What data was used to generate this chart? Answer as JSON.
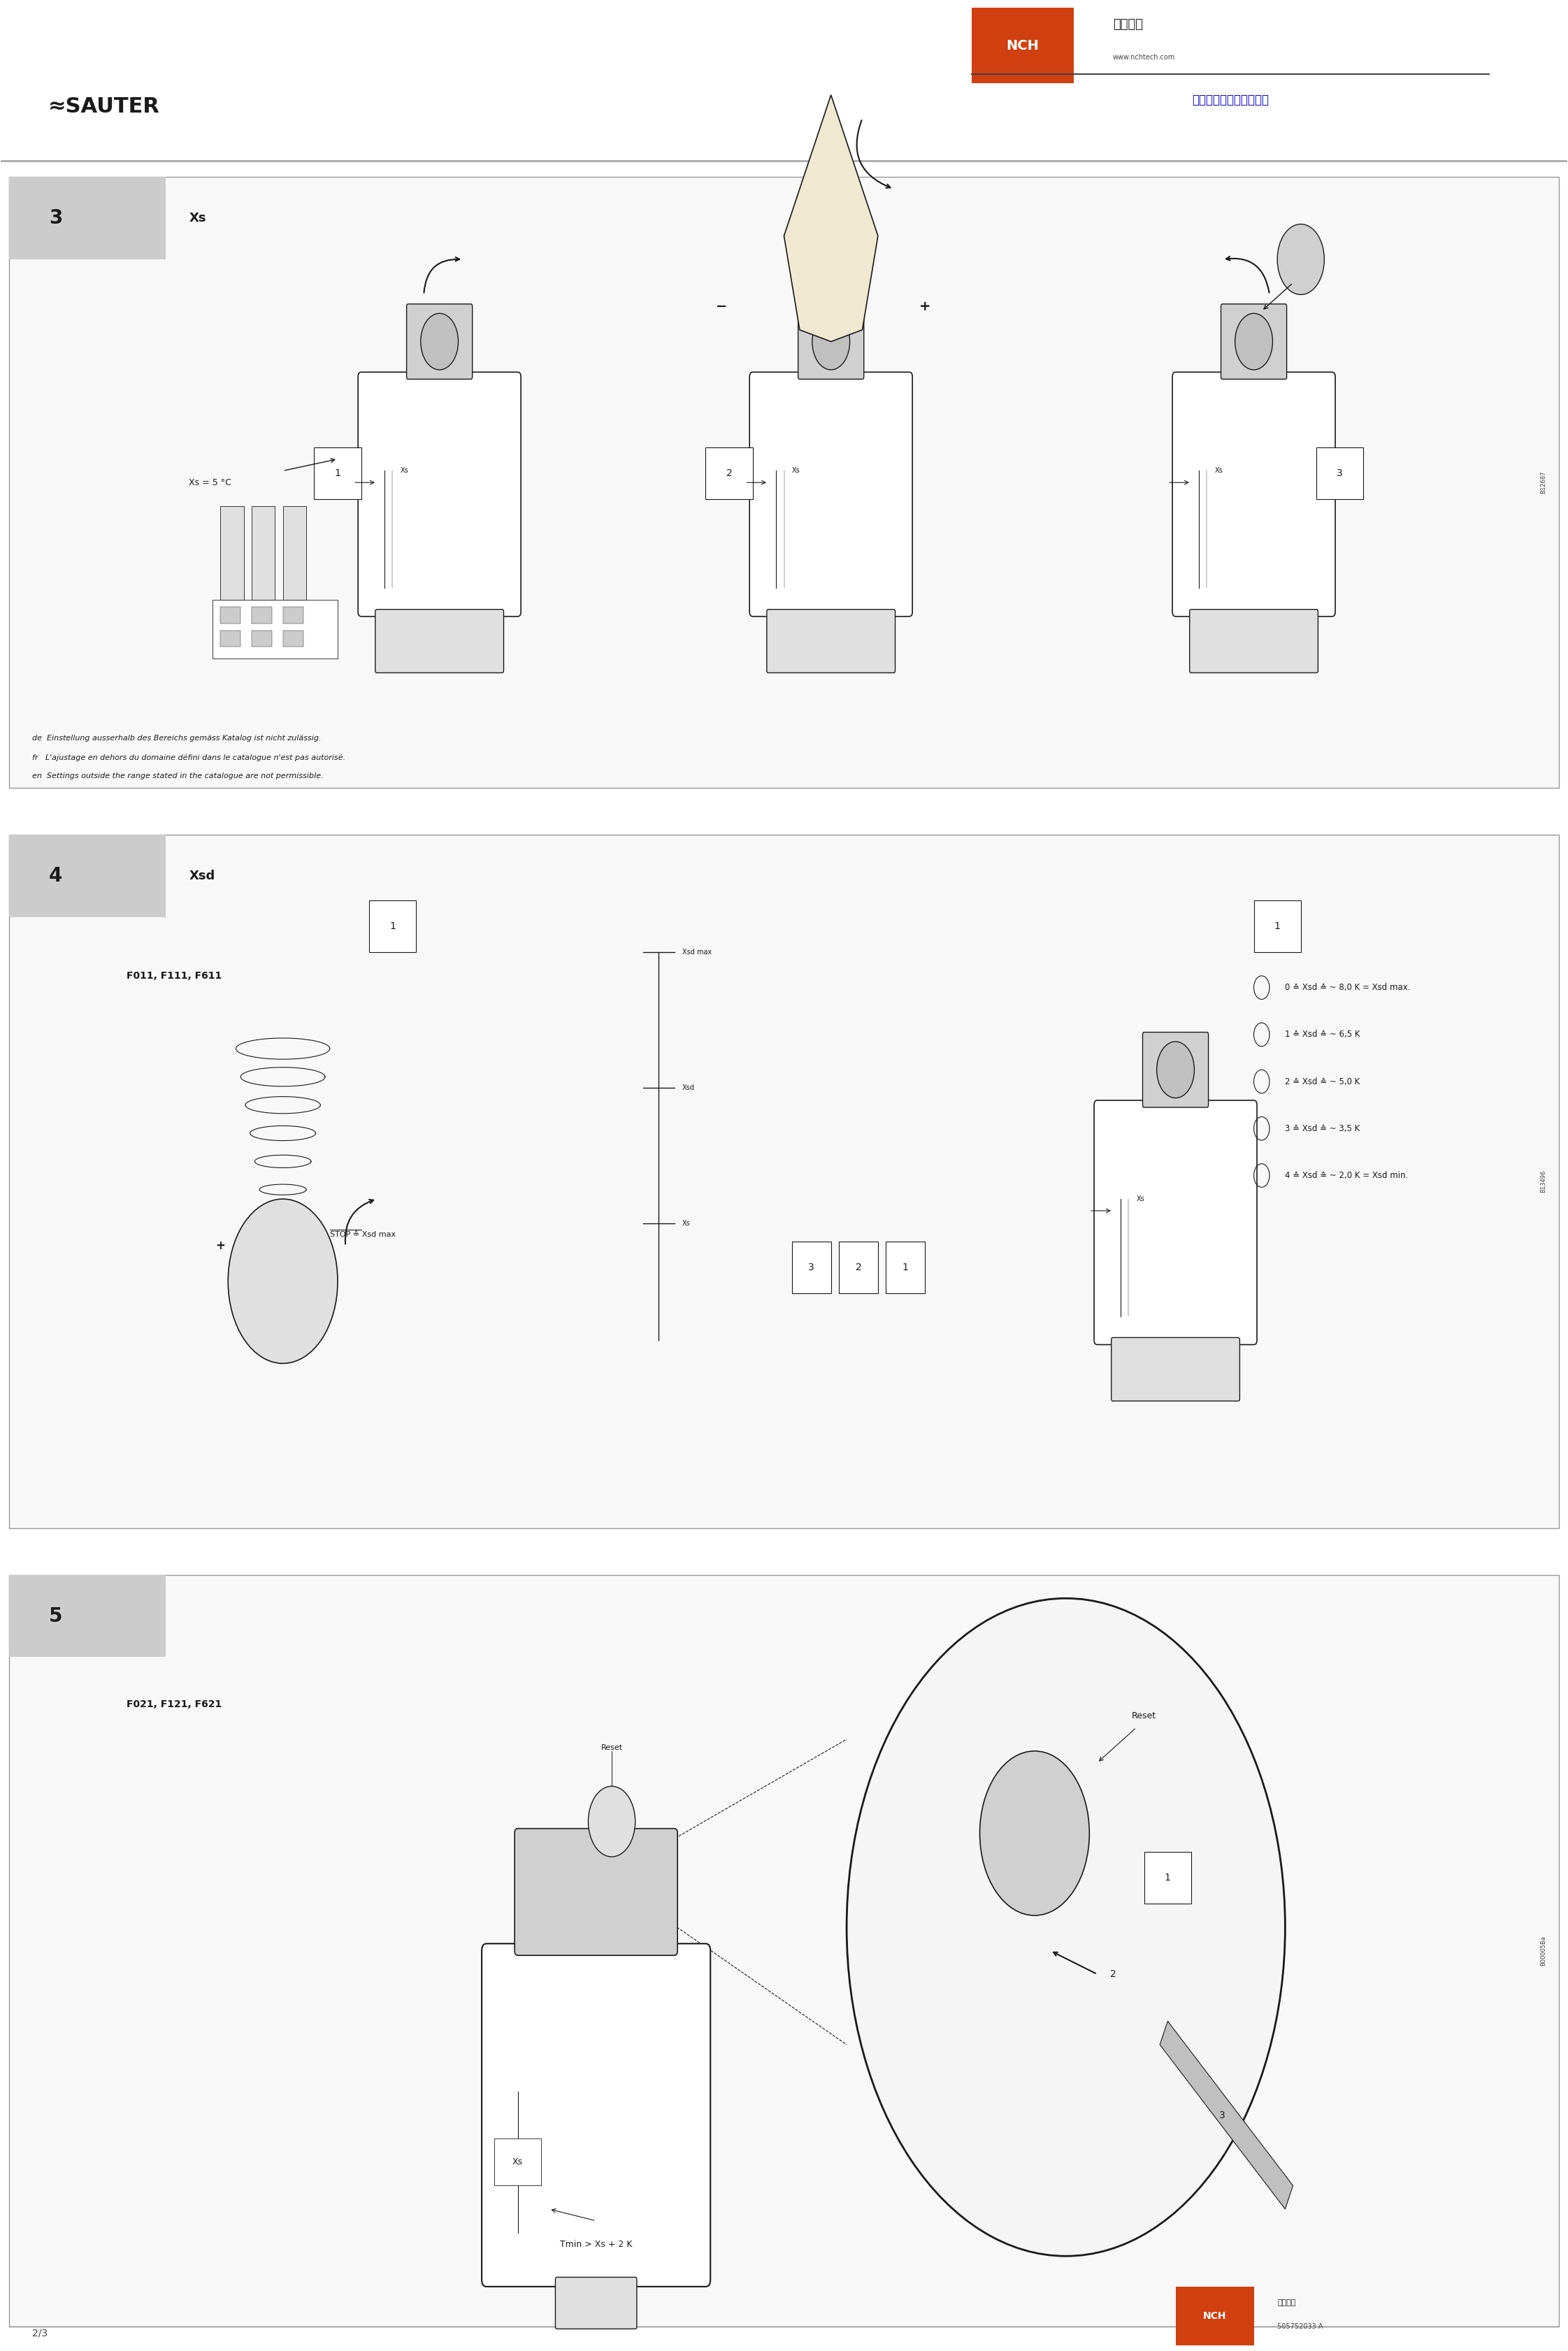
{
  "page_width": 22.43,
  "page_height": 33.63,
  "bg_color": "#ffffff",
  "header_bg": "#ffffff",
  "nch_box_color": "#d04010",
  "nch_text": "NCH",
  "company_cn": "广州南创",
  "website": "www.nchtech.com",
  "tagline": "进口传感器中国总代理商",
  "sauter_text": "SAUTER",
  "section3_num": "3",
  "section3_label": "Xs",
  "section4_num": "4",
  "section4_label": "Xsd",
  "section4_model": "F011, F111, F611",
  "section5_num": "5",
  "section5_model": "F021, F121, F621",
  "xs_5c": "Xs = 5 °C",
  "note_de": "de  Einstellung ausserhalb des Bereichs gemäss Katalog ist nicht zulässig.",
  "note_fr": "fr   L'ajustage en dehors du domaine défini dans le catalogue n'est pas autorisé.",
  "note_en": "en  Settings outside the range stated in the catalogue are not permissible.",
  "xsd_lines": [
    "0 ≙ Xsd ≙ ~ 8,0 K = Xsd max.",
    "1 ≙ Xsd ≙ ~ 6,5 K",
    "2 ≙ Xsd ≙ ~ 5,0 K",
    "3 ≙ Xsd ≙ ~ 3,5 K",
    "4 ≙ Xsd ≙ ~ 2,0 K = Xsd min."
  ],
  "stop_label": "STOP ≙ Xsd max",
  "reset_label": "Reset",
  "tmin_label": "Tmin > Xs + 2 K",
  "xs_label": "Xs",
  "page_num": "2/3",
  "b12687": "B12687",
  "b13496": "B13496",
  "b00005ba": "B00005Ba",
  "section_bg": "#f0f0f0",
  "section_header_bg": "#d0d0d0",
  "border_color": "#888888",
  "light_gray": "#cccccc",
  "dark_gray": "#444444",
  "line_color": "#1a1a1a",
  "light_blue_tag": "#0000cc"
}
